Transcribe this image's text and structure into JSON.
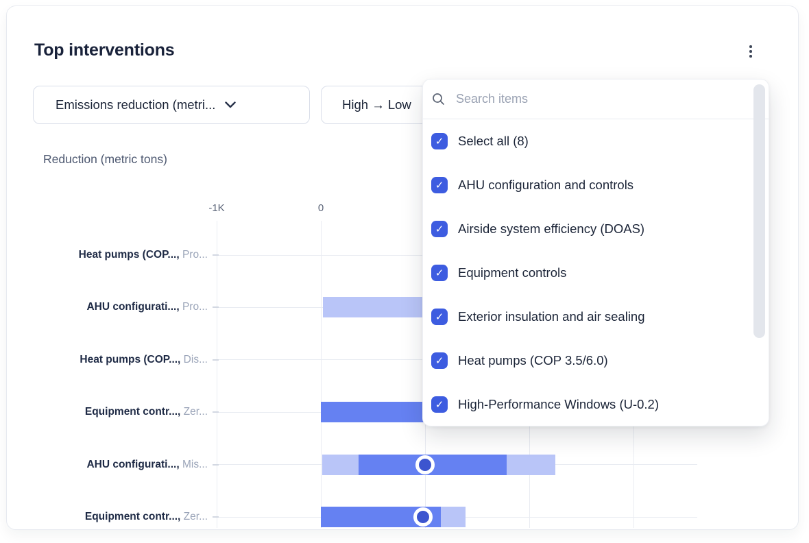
{
  "card": {
    "title": "Top interventions"
  },
  "filters": {
    "metric": {
      "value": "Emissions reduction (metri..."
    },
    "sort": {
      "value": "High → Low"
    }
  },
  "chart_data": {
    "type": "bar",
    "orientation": "horizontal",
    "axis_title": "Reduction (metric tons)",
    "value_unit": "thousand metric tons",
    "xlim": [
      -1.25,
      3.6
    ],
    "grid": true,
    "x_ticks": [
      {
        "value": -1,
        "label": "-1K"
      },
      {
        "value": 0,
        "label": "0"
      }
    ],
    "gridline_values": [
      -1,
      0,
      1,
      2,
      3
    ],
    "rows": [
      {
        "label": "Heat pumps (COP...,",
        "sublabel": "Pro...",
        "segments": [],
        "marker": null
      },
      {
        "label": "AHU configurati...,",
        "sublabel": "Pro...",
        "segments": [
          {
            "start": 0.02,
            "end": 1.35,
            "tone": "light"
          }
        ],
        "marker": null
      },
      {
        "label": "Heat pumps (COP...,",
        "sublabel": "Dis...",
        "segments": [],
        "marker": null
      },
      {
        "label": "Equipment contr...,",
        "sublabel": "Zer...",
        "segments": [
          {
            "start": 0.0,
            "end": 1.8,
            "tone": "solid"
          }
        ],
        "marker": null
      },
      {
        "label": "AHU configurati...,",
        "sublabel": "Mis...",
        "segments": [
          {
            "start": 0.01,
            "end": 0.36,
            "tone": "light"
          },
          {
            "start": 0.36,
            "end": 1.78,
            "tone": "solid"
          },
          {
            "start": 1.78,
            "end": 2.25,
            "tone": "light"
          }
        ],
        "marker": 1.0
      },
      {
        "label": "Equipment contr...,",
        "sublabel": "Zer...",
        "segments": [
          {
            "start": 0.0,
            "end": 1.15,
            "tone": "solid"
          },
          {
            "start": 1.15,
            "end": 1.39,
            "tone": "light"
          }
        ],
        "marker": 0.98
      }
    ]
  },
  "panel": {
    "search_placeholder": "Search items",
    "items": [
      {
        "label": "Select all (8)",
        "checked": true
      },
      {
        "label": "AHU configuration and controls",
        "checked": true
      },
      {
        "label": "Airside system efficiency (DOAS)",
        "checked": true
      },
      {
        "label": "Equipment controls",
        "checked": true
      },
      {
        "label": "Exterior insulation and air sealing",
        "checked": true
      },
      {
        "label": "Heat pumps (COP 3.5/6.0)",
        "checked": true
      },
      {
        "label": "High-Performance Windows (U-0.2)",
        "checked": true
      }
    ],
    "check_glyph": "✓"
  },
  "colors": {
    "accent": "#3d5ce0",
    "bar_solid": "#6581f2",
    "bar_light": "#b9c5f8",
    "marker_fill": "#3c55cf",
    "grid": "#e9ecf2",
    "text_dark": "#1b2437",
    "text_muted": "#9aa4b8"
  }
}
